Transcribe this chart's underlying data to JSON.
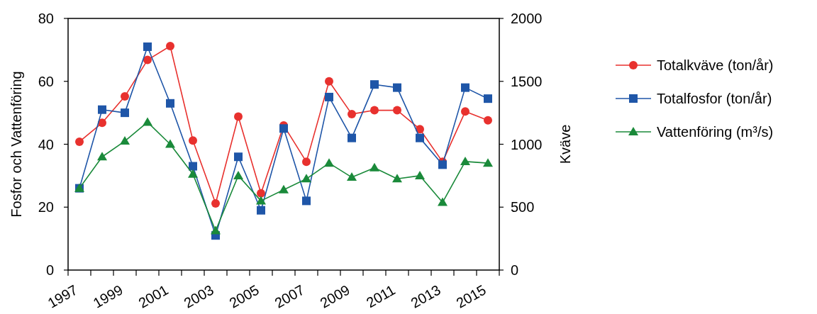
{
  "chart_data": {
    "type": "line",
    "xlabel": null,
    "ylabel": "Fosfor och Vattenföring",
    "y2label": "Kväve",
    "x": [
      1997.5,
      1998.5,
      1999.5,
      2000.5,
      2001.5,
      2002.5,
      2003.5,
      2004.5,
      2005.5,
      2006.5,
      2007.5,
      2008.5,
      2009.5,
      2010.5,
      2011.5,
      2012.5,
      2013.5,
      2014.5,
      2015.5
    ],
    "xlim": [
      1997,
      2016
    ],
    "xticks": [
      1997,
      {
        "value": 1998,
        "label": null
      },
      1999,
      {
        "value": 2000,
        "label": null
      },
      2001,
      {
        "value": 2002,
        "label": null
      },
      2003,
      {
        "value": 2004,
        "label": null
      },
      2005,
      {
        "value": 2006,
        "label": null
      },
      2007,
      {
        "value": 2008,
        "label": null
      },
      2009,
      {
        "value": 2010,
        "label": null
      },
      2011,
      {
        "value": 2012,
        "label": null
      },
      2013,
      {
        "value": 2014,
        "label": null
      },
      2015,
      {
        "value": 2016,
        "label": null
      }
    ],
    "ylim": [
      0,
      80
    ],
    "yticks": [
      0,
      20,
      40,
      60,
      80
    ],
    "y2lim": [
      0,
      2000
    ],
    "y2ticks": [
      0,
      500,
      1000,
      1500,
      2000
    ],
    "legend": "right",
    "grid": false,
    "series": [
      {
        "name": "Totalkväve (ton/år)",
        "color": "#e8312e",
        "axis": "y2",
        "marker": "circle",
        "values": [
          1020,
          1170,
          1380,
          1670,
          1780,
          1030,
          530,
          1220,
          610,
          1150,
          860,
          1500,
          1240,
          1270,
          1270,
          1120,
          860,
          1260,
          1190
        ]
      },
      {
        "name": "Totalfosfor (ton/år)",
        "color": "#1f56a8",
        "marker": "square",
        "values": [
          26,
          51,
          50,
          71,
          53,
          33,
          11,
          36,
          19,
          45,
          22,
          55,
          42,
          59,
          58,
          42,
          33.5,
          58,
          54.5
        ]
      },
      {
        "name": "Vattenföring (m³/s)",
        "color": "#1a8a3a",
        "marker": "triangle",
        "values": [
          26,
          36,
          41,
          47,
          40,
          30.5,
          12.5,
          30,
          22,
          25.5,
          29,
          34,
          29.5,
          32.5,
          29,
          30,
          21.5,
          34.5,
          34
        ]
      }
    ]
  }
}
